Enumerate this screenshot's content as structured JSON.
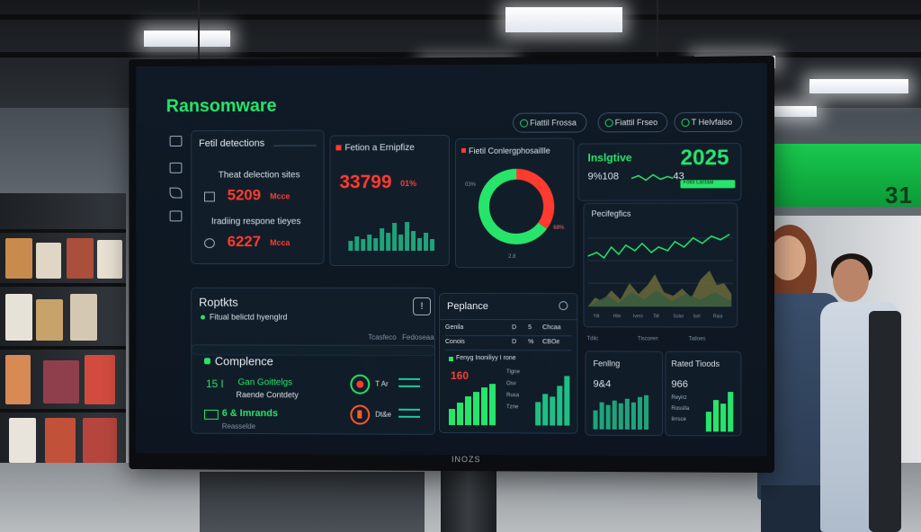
{
  "app": {
    "title": "Ransomware"
  },
  "header_buttons": [
    "Fiattil Frossa",
    "Fiattil Frseo",
    "T Helvfaiso"
  ],
  "cards": {
    "detections": {
      "title": "Fetil detections",
      "row1_label": "Theat delection sites",
      "row1_value": "5209",
      "row1_unit": "Mcce",
      "row2_label": "Iradiing respone tieyes",
      "row2_value": "6227",
      "row2_unit": "Mcca"
    },
    "fetion": {
      "title": "Fetion a Ernipfize",
      "value": "33799",
      "delta": "01%",
      "ticks": [
        "D",
        "22",
        "25",
        "25",
        "03",
        "1",
        "7",
        "9",
        "11"
      ]
    },
    "donut": {
      "title": "Fietil Conlergphosaillle",
      "ring_red_frac": 0.35,
      "ring_green_frac": 0.65,
      "left_label": "03%",
      "right_label": "68%",
      "center_note": "2.8"
    },
    "insight": {
      "label": "Inslgtive",
      "sub": "9%108",
      "value": "2025",
      "change": "43",
      "tag": "Fokli Laclaal"
    },
    "tracking": {
      "title": "Pecifegfics",
      "ticks": [
        "Yiit",
        "Hile",
        "Ivers",
        "Tel",
        "Solor",
        "Isel",
        "Raia"
      ]
    },
    "reports": {
      "title": "Roptkts",
      "subtitle": "Fitual belictd hyenglrd",
      "link1": "Tcasfeco",
      "link2": "Fedoseaa"
    },
    "compliance": {
      "title": "Complence",
      "row1_value": "15 I",
      "row1_text": "Gan Goittelgs",
      "row1_sub": "Raende Contdety",
      "row2_value": "6 & Imrands",
      "row2_sub": "Reasselde",
      "stat1": "T Ar",
      "stat2": "Dt&e"
    },
    "perplance": {
      "title": "Peplance",
      "rows": [
        {
          "name": "Genila",
          "a": "D",
          "b": "5",
          "c": "Chcaa"
        },
        {
          "name": "Conois",
          "a": "D",
          "b": "%",
          "c": "CBOe"
        }
      ],
      "chart_title": "Fenyg Inoniliyy I rone",
      "chart_value": "160",
      "legend": [
        "Tigne",
        "Osv",
        "Rusa",
        "Tzne"
      ]
    },
    "footer_tabs": [
      "Tdlic",
      "Tiscoren",
      "Tailoes"
    ],
    "fenllng": {
      "title": "Fenllng",
      "value": "9&4",
      "legend": [
        "Dolcs",
        "Enrtiry",
        "Cortinty",
        "Ceicee"
      ]
    },
    "rates": {
      "title": "Rated Tioods",
      "value": "966",
      "legend": [
        "Reyirz",
        "Rosslla",
        "Iirrsce"
      ]
    }
  },
  "monitor_brand": "INOZS",
  "wall_sign": "31",
  "colors": {
    "accent_green": "#27e46a",
    "accent_red": "#ff3b2f",
    "screen_bg": "#0f1a26"
  }
}
